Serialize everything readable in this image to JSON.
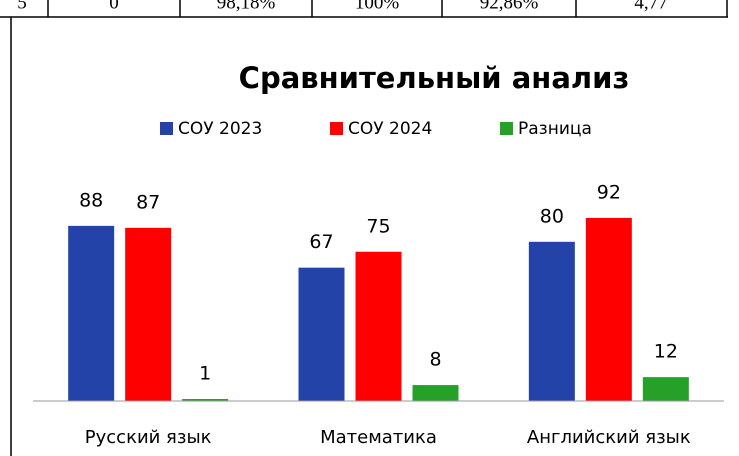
{
  "table_fragment": {
    "cells": [
      "5",
      "0",
      "98,18%",
      "100%",
      "92,86%",
      "4,77"
    ]
  },
  "chart_data": {
    "type": "bar",
    "title": "Сравнительный анализ",
    "categories": [
      "Русский язык",
      "Математика",
      "Английский язык"
    ],
    "series": [
      {
        "name": "СОУ 2023",
        "color": "#2443a8",
        "values": [
          88,
          67,
          80
        ]
      },
      {
        "name": "СОУ 2024",
        "color": "#ff0000",
        "values": [
          87,
          75,
          92
        ]
      },
      {
        "name": "Разница",
        "color": "#27a02a",
        "values": [
          1,
          8,
          12
        ]
      }
    ],
    "ylim": [
      0,
      100
    ],
    "legend": "top"
  }
}
